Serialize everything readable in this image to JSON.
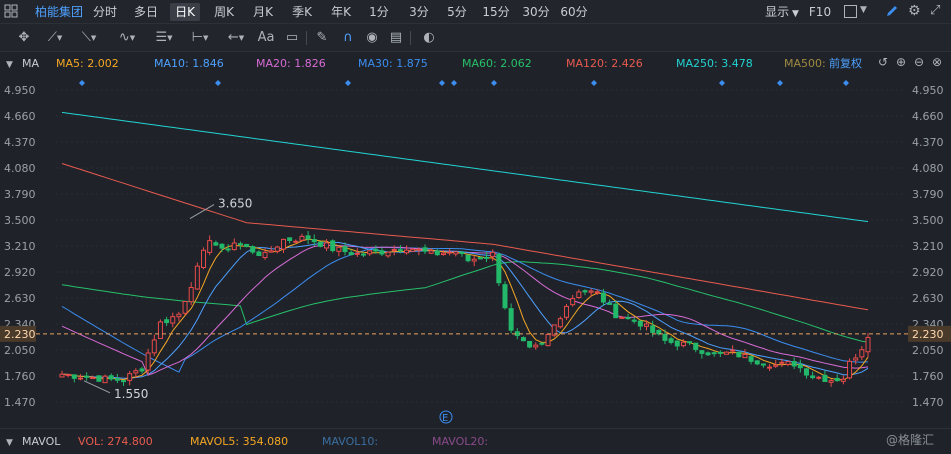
{
  "stock_name": "柏能集团",
  "period_tabs": [
    "分时",
    "多日",
    "日K",
    "周K",
    "月K",
    "季K",
    "年K",
    "1分",
    "3分",
    "5分",
    "15分",
    "30分",
    "60分"
  ],
  "active_tab": "日K",
  "display_menu": "显示",
  "f10_label": "F10",
  "draw_tools": [
    "move-crosshair-icon",
    "line-tool-icon",
    "channel-tool-icon",
    "wave-tool-icon",
    "fib-tool-icon",
    "range-tool-icon",
    "arrow-tool-icon",
    "text-tool-icon",
    "note-tool-icon",
    "eraser-icon",
    "magnet-icon",
    "eye-icon",
    "trash-icon",
    "toggle-icon"
  ],
  "text_tool_label": "Aa",
  "ma_title": "MA",
  "ma_values": [
    {
      "label": "MA5: 2.002",
      "color": "#f5a623"
    },
    {
      "label": "MA10: 1.846",
      "color": "#4ea0ff"
    },
    {
      "label": "MA20: 1.826",
      "color": "#d86bd6"
    },
    {
      "label": "MA30: 1.875",
      "color": "#3b8df0"
    },
    {
      "label": "MA60: 2.062",
      "color": "#27c06a"
    },
    {
      "label": "MA120: 2.426",
      "color": "#e85a4f"
    },
    {
      "label": "MA250: 3.478",
      "color": "#22d3d3"
    },
    {
      "label": "MA500:",
      "color": "#a08a40"
    }
  ],
  "adjust_label": "前复权",
  "vol_title": "MAVOL",
  "vol_values": [
    {
      "label": "VOL: 274.800",
      "color": "#e85a4f"
    },
    {
      "label": "MAVOL5: 354.080",
      "color": "#f5a623"
    },
    {
      "label": "MAVOL10:",
      "color": "#3b6ea0"
    },
    {
      "label": "MAVOL20:",
      "color": "#8a4a8a"
    }
  ],
  "watermark": "@格隆汇",
  "colors": {
    "up": "#e84a4a",
    "down": "#23b86a",
    "bg": "#1f2329",
    "price_line": "#e8a060"
  },
  "chart_data": {
    "type": "candlestick",
    "y_ticks": [
      4.95,
      4.66,
      4.37,
      4.08,
      3.79,
      3.5,
      3.21,
      2.92,
      2.63,
      2.34,
      2.05,
      1.76,
      1.47
    ],
    "ylim": [
      1.3,
      5.05
    ],
    "current_price": 2.23,
    "annotations": [
      {
        "text": "3.650",
        "value": 3.65
      },
      {
        "text": "1.550",
        "value": 1.55
      }
    ],
    "event_marker": "E",
    "ma_series": [
      {
        "name": "MA5",
        "color": "#f5a623"
      },
      {
        "name": "MA10",
        "color": "#4ea0ff"
      },
      {
        "name": "MA20",
        "color": "#d86bd6"
      },
      {
        "name": "MA30",
        "color": "#3b8df0"
      },
      {
        "name": "MA60",
        "color": "#27c06a"
      },
      {
        "name": "MA120",
        "color": "#e85a4f"
      },
      {
        "name": "MA250",
        "color": "#22d3d3"
      }
    ]
  }
}
